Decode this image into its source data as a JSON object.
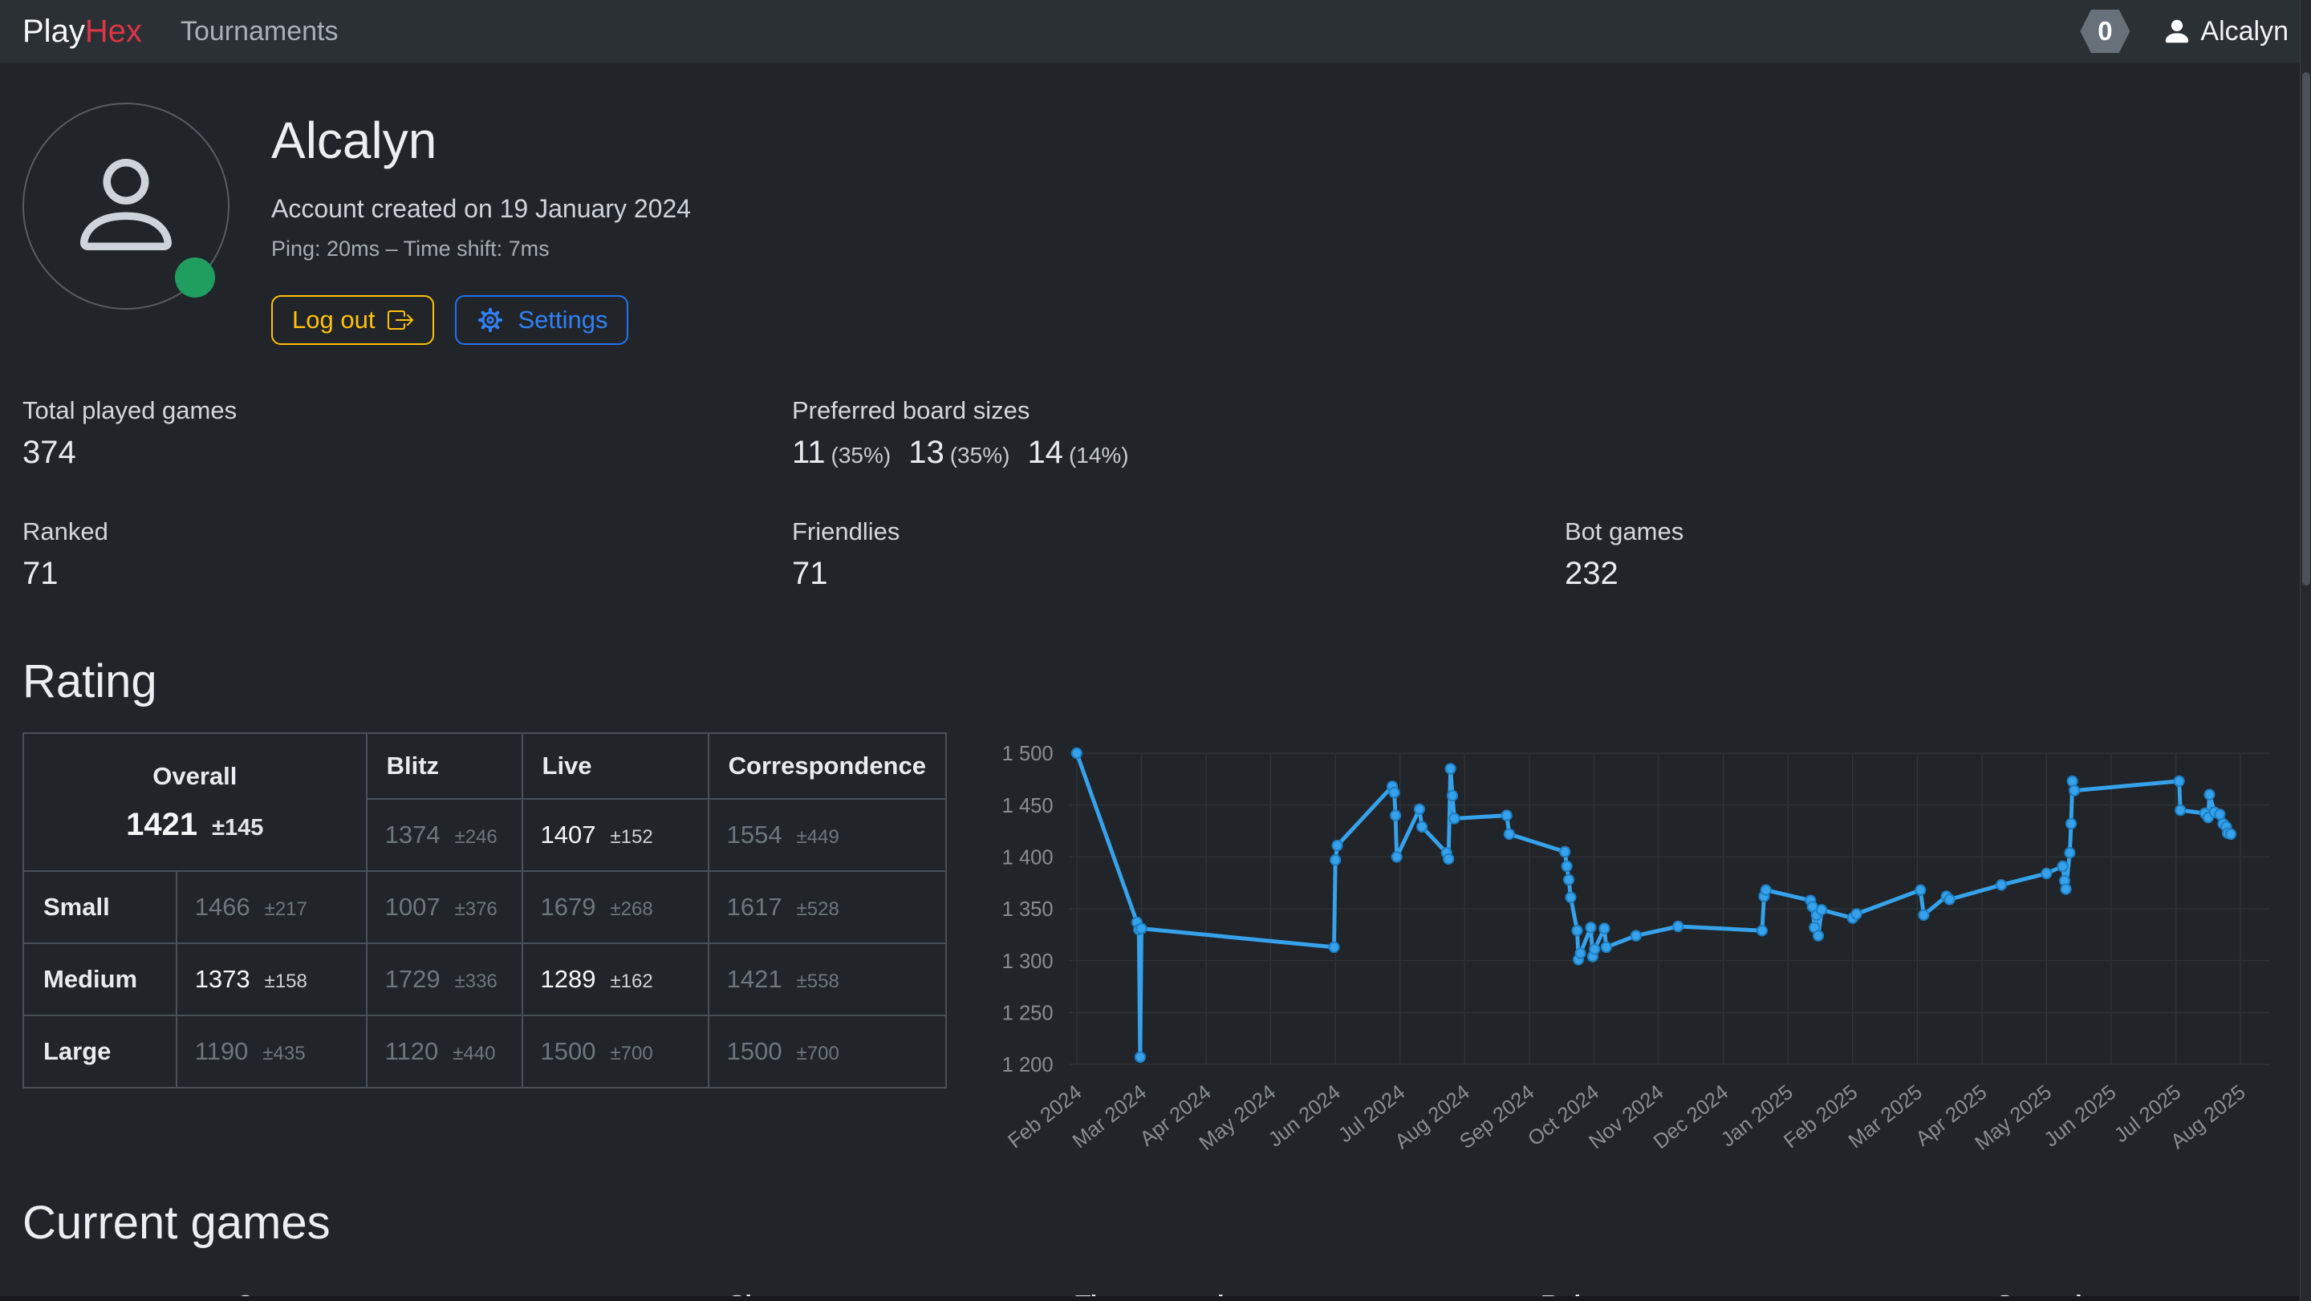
{
  "navbar": {
    "brand_play": "Play",
    "brand_hex": "Hex",
    "tournaments": "Tournaments",
    "badge": "0",
    "username": "Alcalyn"
  },
  "profile": {
    "name": "Alcalyn",
    "created": "Account created on 19 January 2024",
    "ping": "Ping: 20ms – Time shift: 7ms",
    "logout_label": "Log out",
    "settings_label": "Settings"
  },
  "stats": {
    "total": {
      "label": "Total played games",
      "value": "374"
    },
    "preferred": {
      "label": "Preferred board sizes",
      "parts": [
        {
          "num": "11",
          "pct": "(35%)"
        },
        {
          "num": "13",
          "pct": "(35%)"
        },
        {
          "num": "14",
          "pct": "(14%)"
        }
      ]
    },
    "ranked": {
      "label": "Ranked",
      "value": "71"
    },
    "friendlies": {
      "label": "Friendlies",
      "value": "71"
    },
    "bot": {
      "label": "Bot games",
      "value": "232"
    }
  },
  "rating": {
    "heading": "Rating",
    "table": {
      "overall_label": "Overall",
      "overall_value": "1421",
      "overall_dev": "±145",
      "col_headers": [
        "Blitz",
        "Live",
        "Correspondence"
      ],
      "overall_row": [
        {
          "v": "1374",
          "d": "±246",
          "em": false
        },
        {
          "v": "1407",
          "d": "±152",
          "em": true
        },
        {
          "v": "1554",
          "d": "±449",
          "em": false
        }
      ],
      "rows": [
        {
          "label": "Small",
          "cells": [
            {
              "v": "1466",
              "d": "±217",
              "em": false
            },
            {
              "v": "1007",
              "d": "±376",
              "em": false
            },
            {
              "v": "1679",
              "d": "±268",
              "em": false
            },
            {
              "v": "1617",
              "d": "±528",
              "em": false
            }
          ]
        },
        {
          "label": "Medium",
          "cells": [
            {
              "v": "1373",
              "d": "±158",
              "em": true
            },
            {
              "v": "1729",
              "d": "±336",
              "em": false
            },
            {
              "v": "1289",
              "d": "±162",
              "em": true
            },
            {
              "v": "1421",
              "d": "±558",
              "em": false
            }
          ]
        },
        {
          "label": "Large",
          "cells": [
            {
              "v": "1190",
              "d": "±435",
              "em": false
            },
            {
              "v": "1120",
              "d": "±440",
              "em": false
            },
            {
              "v": "1500",
              "d": "±700",
              "em": false
            },
            {
              "v": "1500",
              "d": "±700",
              "em": false
            }
          ]
        }
      ]
    }
  },
  "chart_data": {
    "type": "line",
    "title": "",
    "xlabel": "",
    "ylabel": "",
    "legend": "none",
    "grid": true,
    "x_ticks": [
      "Feb 2024",
      "Mar 2024",
      "Apr 2024",
      "May 2024",
      "Jun 2024",
      "Jul 2024",
      "Aug 2024",
      "Sep 2024",
      "Oct 2024",
      "Nov 2024",
      "Dec 2024",
      "Jan 2025",
      "Feb 2025",
      "Mar 2025",
      "Apr 2025",
      "May 2025",
      "Jun 2025",
      "Jul 2025",
      "Aug 2025"
    ],
    "x_domain": [
      -0.12,
      18.45
    ],
    "y_ticks": [
      1500,
      1450,
      1400,
      1350,
      1300,
      1250,
      1200
    ],
    "y_tick_labels": [
      "1 500",
      "1 450",
      "1 400",
      "1 350",
      "1 300",
      "1 250",
      "1 200"
    ],
    "ylim": [
      1200,
      1500
    ],
    "line_color": "#36a2eb",
    "point_ring": "#1d7fc4",
    "grid_color": "#2e3338",
    "tick_color": "#878d92",
    "series": [
      {
        "name": "Rating",
        "points": [
          [
            0,
            1500
          ],
          [
            0.93,
            1337
          ],
          [
            0.96,
            1330
          ],
          [
            0.98,
            1207
          ],
          [
            1.0,
            1331
          ],
          [
            3.98,
            1313
          ],
          [
            4.0,
            1397
          ],
          [
            4.03,
            1411
          ],
          [
            4.88,
            1468
          ],
          [
            4.91,
            1462
          ],
          [
            4.93,
            1440
          ],
          [
            4.95,
            1400
          ],
          [
            5.3,
            1446
          ],
          [
            5.34,
            1429
          ],
          [
            5.72,
            1404
          ],
          [
            5.75,
            1398
          ],
          [
            5.78,
            1485
          ],
          [
            5.81,
            1459
          ],
          [
            5.84,
            1437
          ],
          [
            6.65,
            1440
          ],
          [
            6.69,
            1422
          ],
          [
            7.55,
            1405
          ],
          [
            7.58,
            1391
          ],
          [
            7.61,
            1378
          ],
          [
            7.64,
            1361
          ],
          [
            7.74,
            1329
          ],
          [
            7.76,
            1301
          ],
          [
            7.79,
            1307
          ],
          [
            7.95,
            1332
          ],
          [
            7.98,
            1304
          ],
          [
            8.01,
            1311
          ],
          [
            8.16,
            1331
          ],
          [
            8.19,
            1313
          ],
          [
            8.65,
            1324
          ],
          [
            9.3,
            1333
          ],
          [
            10.6,
            1329
          ],
          [
            10.63,
            1362
          ],
          [
            10.66,
            1368
          ],
          [
            11.35,
            1358
          ],
          [
            11.38,
            1352
          ],
          [
            11.41,
            1332
          ],
          [
            11.44,
            1344
          ],
          [
            11.47,
            1324
          ],
          [
            11.52,
            1349
          ],
          [
            12.0,
            1341
          ],
          [
            12.06,
            1345
          ],
          [
            13.05,
            1368
          ],
          [
            13.1,
            1344
          ],
          [
            13.45,
            1362
          ],
          [
            13.5,
            1359
          ],
          [
            14.3,
            1373
          ],
          [
            15.0,
            1384
          ],
          [
            15.25,
            1391
          ],
          [
            15.28,
            1377
          ],
          [
            15.3,
            1369
          ],
          [
            15.36,
            1404
          ],
          [
            15.38,
            1432
          ],
          [
            15.4,
            1473
          ],
          [
            15.43,
            1464
          ],
          [
            17.05,
            1473
          ],
          [
            17.07,
            1445
          ],
          [
            17.45,
            1442
          ],
          [
            17.5,
            1438
          ],
          [
            17.52,
            1460
          ],
          [
            17.6,
            1443
          ],
          [
            17.68,
            1441
          ],
          [
            17.73,
            1432
          ],
          [
            17.78,
            1429
          ],
          [
            17.8,
            1423
          ],
          [
            17.85,
            1422
          ]
        ]
      }
    ]
  },
  "current_games": {
    "heading": "Current games",
    "columns": [
      "Opponent",
      "Size",
      "Time control",
      "Rules",
      "Started"
    ]
  },
  "colors": {
    "accent_blue": "#36a2eb",
    "warning_yellow": "#ffc107",
    "primary_blue": "#2b7cf6",
    "success_green": "#1f9e5f",
    "brand_red": "#dc3545"
  }
}
